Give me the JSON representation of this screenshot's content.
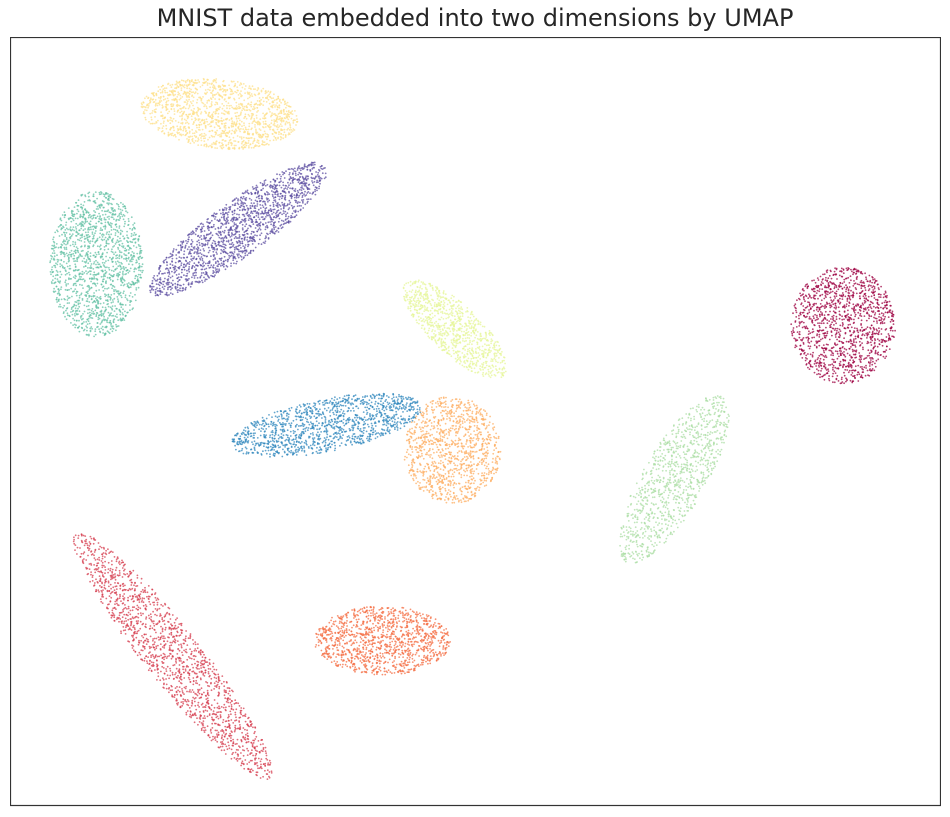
{
  "chart_data": {
    "type": "scatter",
    "title": "MNIST data embedded into two dimensions by UMAP",
    "xlabel": "",
    "ylabel": "",
    "xlim": [
      0,
      100
    ],
    "ylim": [
      0,
      100
    ],
    "grid": false,
    "axis_ticks": false,
    "legend": "none",
    "series": [
      {
        "color": "#fee08b",
        "n": 1400,
        "center": [
          22.5,
          90.0
        ],
        "radius": [
          8.5,
          4.5
        ],
        "angle": -8
      },
      {
        "color": "#5e4fa2",
        "n": 1600,
        "center": [
          24.5,
          75.0
        ],
        "radius": [
          12.5,
          3.3
        ],
        "angle": 42
      },
      {
        "color": "#66c2a5",
        "n": 1500,
        "center": [
          9.3,
          70.5
        ],
        "radius": [
          5.0,
          9.5
        ],
        "angle": 0
      },
      {
        "color": "#e6f598",
        "n": 900,
        "center": [
          47.8,
          62.0
        ],
        "radius": [
          8.0,
          2.9
        ],
        "angle": -50
      },
      {
        "color": "#3288bd",
        "n": 1300,
        "center": [
          34.0,
          49.5
        ],
        "radius": [
          10.5,
          3.4
        ],
        "angle": 14
      },
      {
        "color": "#fdae61",
        "n": 1100,
        "center": [
          47.5,
          46.3
        ],
        "radius": [
          5.2,
          7.0
        ],
        "angle": 0
      },
      {
        "color": "#9e0142",
        "n": 1300,
        "center": [
          89.5,
          62.5
        ],
        "radius": [
          5.6,
          7.6
        ],
        "angle": 0
      },
      {
        "color": "#abdda4",
        "n": 1000,
        "center": [
          71.3,
          42.5
        ],
        "radius": [
          12.0,
          3.5
        ],
        "angle": 65
      },
      {
        "color": "#d53e4f",
        "n": 1600,
        "center": [
          17.5,
          19.5
        ],
        "radius": [
          19.0,
          3.2
        ],
        "angle": -57
      },
      {
        "color": "#f46d43",
        "n": 1200,
        "center": [
          40.0,
          21.5
        ],
        "radius": [
          7.3,
          4.5
        ],
        "angle": 0
      }
    ]
  }
}
